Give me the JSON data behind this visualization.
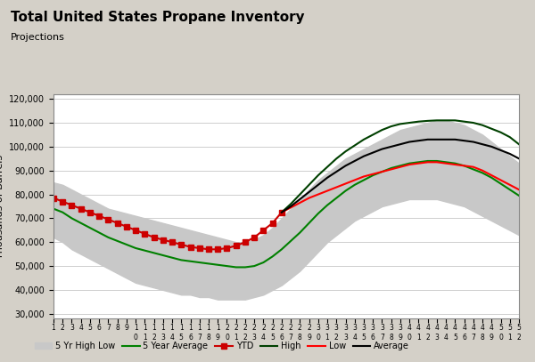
{
  "title": "Total United States Propane Inventory",
  "subtitle": "Projections",
  "ylim": [
    28000,
    122000
  ],
  "yticks": [
    30000,
    40000,
    50000,
    60000,
    70000,
    80000,
    90000,
    100000,
    110000,
    120000
  ],
  "background_color": "#d4d0c8",
  "plot_bg": "#ffffff",
  "n_weeks": 52,
  "five_yr_high": [
    85000,
    84000,
    82000,
    80000,
    78000,
    76000,
    74000,
    73000,
    72000,
    71000,
    70000,
    69000,
    68000,
    67000,
    66000,
    65000,
    64000,
    63000,
    62000,
    61000,
    60000,
    60000,
    61000,
    63000,
    66000,
    70000,
    74000,
    78000,
    82000,
    86000,
    89000,
    92000,
    95000,
    97000,
    99000,
    101000,
    103000,
    105000,
    107000,
    108000,
    109000,
    110000,
    111000,
    111000,
    110000,
    109000,
    107000,
    105000,
    102000,
    99000,
    96000,
    93000
  ],
  "five_yr_low": [
    62000,
    60000,
    57000,
    55000,
    53000,
    51000,
    49000,
    47000,
    45000,
    43000,
    42000,
    41000,
    40000,
    39000,
    38000,
    38000,
    37000,
    37000,
    36000,
    36000,
    36000,
    36000,
    37000,
    38000,
    40000,
    42000,
    45000,
    48000,
    52000,
    56000,
    60000,
    63000,
    66000,
    69000,
    71000,
    73000,
    75000,
    76000,
    77000,
    78000,
    78000,
    78000,
    78000,
    77000,
    76000,
    75000,
    73000,
    71000,
    69000,
    67000,
    65000,
    63000
  ],
  "five_yr_avg": [
    74000,
    72500,
    70000,
    68000,
    66000,
    64000,
    62000,
    60500,
    59000,
    57500,
    56500,
    55500,
    54500,
    53500,
    52500,
    52000,
    51500,
    51000,
    50500,
    50000,
    49500,
    49500,
    50000,
    51500,
    54000,
    57000,
    60500,
    64000,
    68000,
    72000,
    75500,
    78500,
    81500,
    84000,
    86000,
    88000,
    89500,
    91000,
    92000,
    93000,
    93500,
    94000,
    94000,
    93500,
    93000,
    92000,
    90500,
    89000,
    87000,
    84500,
    82000,
    79500
  ],
  "ytd_weeks": [
    1,
    2,
    3,
    4,
    5,
    6,
    7,
    8,
    9,
    10,
    11,
    12,
    13,
    14,
    15,
    16,
    17,
    18,
    19,
    20,
    21,
    22,
    23,
    24,
    25,
    26
  ],
  "ytd_values": [
    78500,
    77000,
    75500,
    74000,
    72500,
    71000,
    69500,
    68000,
    66500,
    65000,
    63500,
    62000,
    61000,
    60000,
    59000,
    58000,
    57500,
    57000,
    57000,
    57500,
    58500,
    60000,
    62000,
    65000,
    68000,
    72500
  ],
  "high_weeks": [
    26,
    27,
    28,
    29,
    30,
    31,
    32,
    33,
    34,
    35,
    36,
    37,
    38,
    39,
    40,
    41,
    42,
    43,
    44,
    45,
    46,
    47,
    48,
    49,
    50,
    51,
    52
  ],
  "high_values": [
    72500,
    76000,
    80000,
    84000,
    88000,
    91500,
    95000,
    98000,
    100500,
    103000,
    105000,
    107000,
    108500,
    109500,
    110000,
    110500,
    110800,
    111000,
    111000,
    111000,
    110500,
    110000,
    109000,
    107500,
    106000,
    104000,
    101000
  ],
  "low_weeks": [
    26,
    27,
    28,
    29,
    30,
    31,
    32,
    33,
    34,
    35,
    36,
    37,
    38,
    39,
    40,
    41,
    42,
    43,
    44,
    45,
    46,
    47,
    48,
    49,
    50,
    51,
    52
  ],
  "low_values": [
    72500,
    74500,
    76500,
    78500,
    80000,
    81500,
    83000,
    84500,
    86000,
    87500,
    88500,
    89500,
    90500,
    91500,
    92500,
    93000,
    93500,
    93500,
    93000,
    92500,
    92000,
    91500,
    90000,
    88000,
    86000,
    84000,
    82000
  ],
  "avg_weeks": [
    26,
    27,
    28,
    29,
    30,
    31,
    32,
    33,
    34,
    35,
    36,
    37,
    38,
    39,
    40,
    41,
    42,
    43,
    44,
    45,
    46,
    47,
    48,
    49,
    50,
    51,
    52
  ],
  "avg_values": [
    72500,
    75000,
    78000,
    81000,
    84000,
    87000,
    89500,
    92000,
    94000,
    96000,
    97500,
    99000,
    100000,
    101000,
    102000,
    102500,
    103000,
    103000,
    103000,
    103000,
    102500,
    102000,
    101000,
    100000,
    98500,
    97000,
    95000
  ],
  "color_band": "#c8c8c8",
  "color_5yr_avg": "#008000",
  "color_ytd": "#cc0000",
  "color_high": "#004000",
  "color_low": "#ff0000",
  "color_avg": "#000000",
  "marker_ytd": "s",
  "legend_items": [
    "5 Yr High Low",
    "5 Year Average",
    "YTD",
    "High",
    "Low",
    "Average"
  ]
}
